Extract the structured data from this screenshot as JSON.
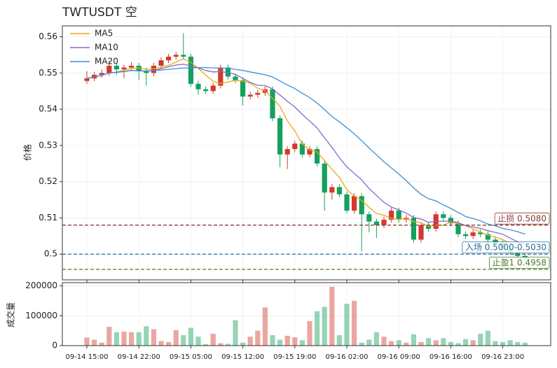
{
  "chart_data": {
    "type": "candlestick",
    "title": "TWTUSDT 空",
    "ylabel": "价格",
    "categories": [
      "09-14 15:00",
      null,
      null,
      null,
      null,
      null,
      null,
      "09-14 22:00",
      null,
      null,
      null,
      null,
      null,
      null,
      "09-15 05:00",
      null,
      null,
      null,
      null,
      null,
      null,
      "09-15 12:00",
      null,
      null,
      null,
      null,
      null,
      null,
      "09-15 19:00",
      null,
      null,
      null,
      null,
      null,
      null,
      "09-16 02:00",
      null,
      null,
      null,
      null,
      null,
      null,
      "09-16 09:00",
      null,
      null,
      null,
      null,
      null,
      null,
      "09-16 16:00",
      null,
      null,
      null,
      null,
      null,
      null,
      "09-16 23:00",
      null,
      null,
      null
    ],
    "open": [
      0.5478,
      0.5485,
      0.5495,
      0.55,
      0.552,
      0.551,
      0.5515,
      0.552,
      0.5505,
      0.55,
      0.552,
      0.5535,
      0.5545,
      0.555,
      0.5545,
      0.547,
      0.5455,
      0.545,
      0.5465,
      0.5515,
      0.549,
      0.548,
      0.5435,
      0.544,
      0.5445,
      0.5455,
      0.5375,
      0.5275,
      0.529,
      0.5305,
      0.5275,
      0.529,
      0.525,
      0.517,
      0.5185,
      0.5165,
      0.512,
      0.516,
      0.511,
      0.509,
      0.508,
      0.5095,
      0.512,
      0.5095,
      0.51,
      0.504,
      0.508,
      0.507,
      0.511,
      0.51,
      0.5085,
      0.5055,
      0.505,
      0.506,
      0.5055,
      0.504,
      0.503,
      0.5015,
      0.5005,
      0.4995
    ],
    "high": [
      0.5505,
      0.5503,
      0.551,
      0.5535,
      0.5528,
      0.5523,
      0.553,
      0.5528,
      0.5515,
      0.5528,
      0.5543,
      0.5553,
      0.5558,
      0.561,
      0.5553,
      0.5478,
      0.5463,
      0.5473,
      0.5523,
      0.5523,
      0.5498,
      0.5488,
      0.5448,
      0.5453,
      0.5463,
      0.5463,
      0.5383,
      0.5298,
      0.5313,
      0.5313,
      0.5298,
      0.5298,
      0.5258,
      0.5193,
      0.5193,
      0.5173,
      0.5168,
      0.5168,
      0.5118,
      0.5098,
      0.5103,
      0.5128,
      0.5128,
      0.5108,
      0.5108,
      0.5088,
      0.5088,
      0.5118,
      0.5118,
      0.5108,
      0.5093,
      0.5063,
      0.5068,
      0.5068,
      0.5063,
      0.5048,
      0.5038,
      0.5023,
      0.5013,
      0.5003
    ],
    "low": [
      0.547,
      0.5477,
      0.5487,
      0.5492,
      0.5495,
      0.5485,
      0.5505,
      0.548,
      0.5465,
      0.5492,
      0.5512,
      0.5527,
      0.5537,
      0.5537,
      0.5462,
      0.544,
      0.5442,
      0.5442,
      0.5457,
      0.5482,
      0.5472,
      0.541,
      0.5427,
      0.5432,
      0.5437,
      0.5367,
      0.524,
      0.5235,
      0.5282,
      0.5267,
      0.5267,
      0.5242,
      0.512,
      0.515,
      0.5157,
      0.5112,
      0.5112,
      0.5007,
      0.506,
      0.5045,
      0.5072,
      0.5087,
      0.5087,
      0.5087,
      0.5032,
      0.5032,
      0.5062,
      0.5062,
      0.5092,
      0.5077,
      0.5047,
      0.5042,
      0.5042,
      0.5047,
      0.5032,
      0.5022,
      0.5007,
      0.4997,
      0.4987,
      0.4982
    ],
    "close": [
      0.5485,
      0.5495,
      0.55,
      0.552,
      0.551,
      0.5515,
      0.552,
      0.5505,
      0.55,
      0.552,
      0.5535,
      0.5545,
      0.555,
      0.5545,
      0.547,
      0.5455,
      0.545,
      0.5465,
      0.5515,
      0.549,
      0.548,
      0.5435,
      0.544,
      0.5445,
      0.5455,
      0.5375,
      0.5275,
      0.529,
      0.5305,
      0.5275,
      0.529,
      0.525,
      0.517,
      0.5185,
      0.5165,
      0.512,
      0.516,
      0.511,
      0.509,
      0.508,
      0.5095,
      0.512,
      0.5095,
      0.51,
      0.504,
      0.508,
      0.507,
      0.511,
      0.51,
      0.5085,
      0.5055,
      0.505,
      0.506,
      0.5055,
      0.504,
      0.503,
      0.5015,
      0.5005,
      0.4995,
      0.499
    ],
    "up_color": "#d3392c",
    "down_color": "#14a05e",
    "series": [
      {
        "name": "MA5",
        "color": "#e8a915",
        "values": [
          0.5485,
          0.549,
          0.5493,
          0.55,
          0.5502,
          0.5508,
          0.5513,
          0.5514,
          0.551,
          0.5512,
          0.5516,
          0.5521,
          0.553,
          0.5539,
          0.5529,
          0.5513,
          0.5494,
          0.5477,
          0.5471,
          0.5475,
          0.548,
          0.5477,
          0.5472,
          0.5458,
          0.5451,
          0.543,
          0.5408,
          0.5368,
          0.534,
          0.5304,
          0.5287,
          0.5282,
          0.5258,
          0.5234,
          0.5212,
          0.5178,
          0.516,
          0.5148,
          0.5129,
          0.5112,
          0.5107,
          0.5099,
          0.5096,
          0.5098,
          0.509,
          0.5087,
          0.5077,
          0.508,
          0.508,
          0.5089,
          0.5084,
          0.5078,
          0.507,
          0.5061,
          0.5052,
          0.5047,
          0.504,
          0.5029,
          0.5017,
          0.5007
        ]
      },
      {
        "name": "MA10",
        "color": "#7f6bc8",
        "values": [
          0.5485,
          0.549,
          0.5493,
          0.55,
          0.5502,
          0.5504,
          0.5507,
          0.5506,
          0.5505,
          0.5507,
          0.5512,
          0.5517,
          0.5522,
          0.5524,
          0.552,
          0.5514,
          0.5507,
          0.5503,
          0.5504,
          0.5501,
          0.5496,
          0.5485,
          0.5474,
          0.5466,
          0.5465,
          0.5456,
          0.5439,
          0.5422,
          0.5406,
          0.5386,
          0.5367,
          0.5348,
          0.5321,
          0.5295,
          0.5266,
          0.5241,
          0.5223,
          0.5205,
          0.5181,
          0.5162,
          0.5143,
          0.513,
          0.5122,
          0.5113,
          0.5101,
          0.5097,
          0.5088,
          0.509,
          0.5091,
          0.5091,
          0.5087,
          0.5079,
          0.5075,
          0.5071,
          0.5065,
          0.506,
          0.5055,
          0.5044,
          0.5034,
          0.5028
        ]
      },
      {
        "name": "MA20",
        "color": "#3d8fd3",
        "values": [
          0.5485,
          0.549,
          0.5493,
          0.55,
          0.5502,
          0.5504,
          0.5507,
          0.5506,
          0.5505,
          0.5507,
          0.5508,
          0.551,
          0.5512,
          0.5514,
          0.5514,
          0.5515,
          0.5515,
          0.5514,
          0.5514,
          0.5513,
          0.551,
          0.5507,
          0.5503,
          0.5499,
          0.5495,
          0.5489,
          0.5478,
          0.5467,
          0.5457,
          0.5444,
          0.5432,
          0.5417,
          0.5399,
          0.538,
          0.5365,
          0.5349,
          0.5332,
          0.5313,
          0.5293,
          0.5274,
          0.5255,
          0.5238,
          0.5221,
          0.5203,
          0.5183,
          0.5165,
          0.5153,
          0.5147,
          0.5136,
          0.5126,
          0.5115,
          0.5104,
          0.5098,
          0.5092,
          0.5083,
          0.5078,
          0.5071,
          0.5067,
          0.5062,
          0.5055
        ]
      }
    ],
    "levels": [
      {
        "value": 0.508,
        "label": "止损 0.5080",
        "color": "#8c3b36"
      },
      {
        "value": 0.5,
        "label": "入场 0.5000-0.5030",
        "color": "#2c6d9f"
      },
      {
        "value": 0.4958,
        "label": "止盈1 0.4958",
        "color": "#4b7a27"
      }
    ],
    "ylim": [
      0.4929,
      0.563
    ],
    "yticks": [
      0.5,
      0.51,
      0.52,
      0.53,
      0.54,
      0.55,
      0.56
    ],
    "grid": true,
    "legend": "upper left",
    "volume": {
      "ylabel": "成交量",
      "values": [
        27000,
        20000,
        10000,
        63000,
        45000,
        47000,
        45000,
        45000,
        65000,
        55000,
        15000,
        12000,
        52000,
        35000,
        60000,
        30000,
        5000,
        40000,
        8000,
        6000,
        85000,
        10000,
        30000,
        50000,
        128000,
        35000,
        20000,
        33000,
        28000,
        18000,
        82000,
        115000,
        130000,
        197000,
        35000,
        140000,
        150000,
        10000,
        20000,
        45000,
        30000,
        15000,
        18000,
        10000,
        38000,
        12000,
        25000,
        18000,
        25000,
        12000,
        8000,
        22000,
        18000,
        40000,
        50000,
        15000,
        12000,
        18000,
        12000,
        10000
      ],
      "ylim": [
        0,
        211000
      ],
      "yticks": [
        0,
        100000,
        200000
      ]
    }
  }
}
